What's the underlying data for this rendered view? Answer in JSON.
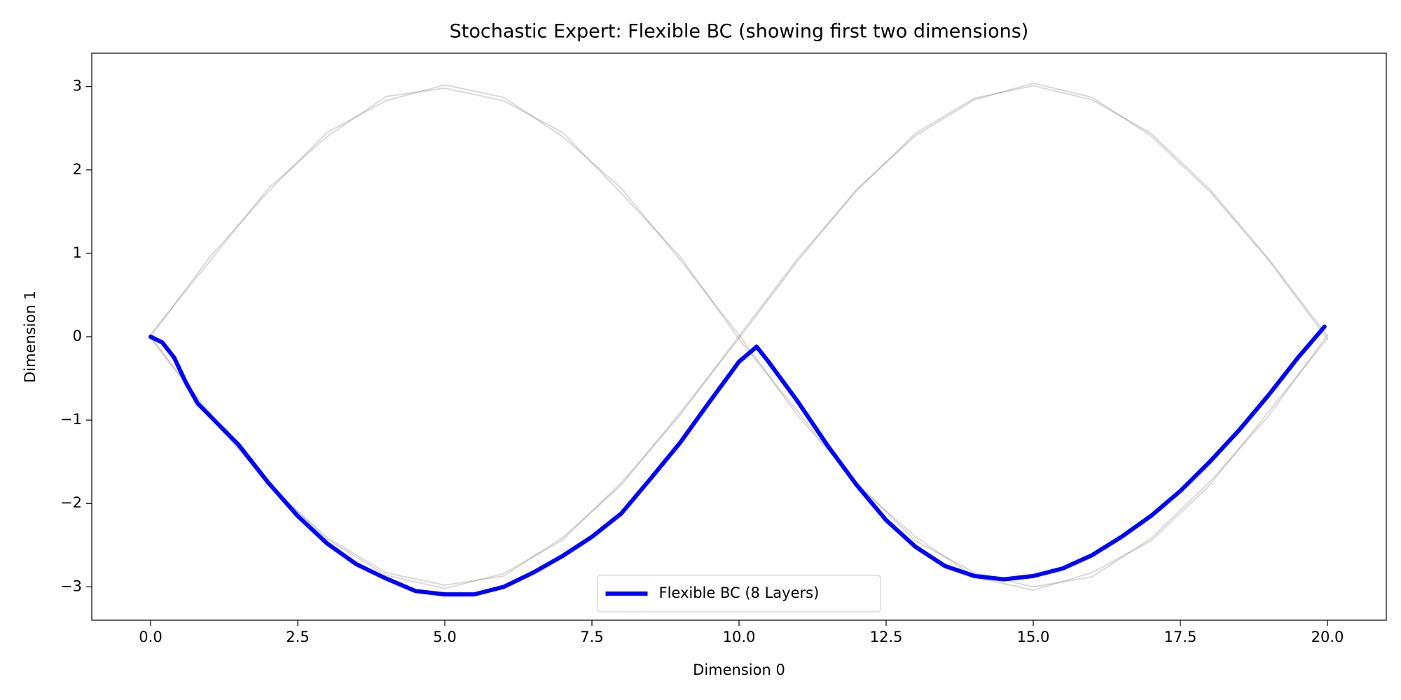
{
  "chart_data": {
    "type": "line",
    "title": "Stochastic Expert: Flexible BC (showing first two dimensions)",
    "x_label": "Dimension 0",
    "y_label": "Dimension 1",
    "xlim": [
      -1,
      21
    ],
    "ylim": [
      -3.4,
      3.4
    ],
    "xticks": [
      {
        "value": 0,
        "label": "0.0"
      },
      2.5,
      {
        "value": 5,
        "label": "5.0"
      },
      7.5,
      {
        "value": 10,
        "label": "10.0"
      },
      12.5,
      {
        "value": 15,
        "label": "15.0"
      },
      17.5,
      {
        "value": 20,
        "label": "20.0"
      }
    ],
    "yticks": [
      {
        "value": -3,
        "label": "−3"
      },
      {
        "value": -2,
        "label": "−2"
      },
      {
        "value": -1,
        "label": "−1"
      },
      0,
      1,
      2,
      3
    ],
    "grid": false,
    "legend": "lower center",
    "series": [
      {
        "color": "#808080",
        "alpha": 0.3,
        "width": 2,
        "x": [
          0,
          1,
          2,
          3,
          4,
          5,
          6,
          7,
          8,
          9,
          10,
          11,
          12,
          13,
          14,
          15,
          16,
          17,
          18,
          19,
          20
        ],
        "values": [
          0,
          0.95,
          1.74,
          2.45,
          2.83,
          3.02,
          2.87,
          2.4,
          1.78,
          0.92,
          0.02,
          -0.95,
          -1.75,
          -2.45,
          -2.83,
          -3.0,
          -2.88,
          -2.42,
          -1.74,
          -0.95,
          0.02
        ]
      },
      {
        "color": "#808080",
        "alpha": 0.3,
        "width": 2,
        "x": [
          0,
          1,
          2,
          3,
          4,
          5,
          6,
          7,
          8,
          9,
          10,
          11,
          12,
          13,
          14,
          15,
          16,
          17,
          18,
          19,
          20
        ],
        "values": [
          0.03,
          0.9,
          1.78,
          2.4,
          2.88,
          2.98,
          2.83,
          2.45,
          1.72,
          0.96,
          -0.03,
          -0.9,
          -1.78,
          -2.4,
          -2.88,
          -3.04,
          -2.83,
          -2.45,
          -1.78,
          -0.9,
          -0.02
        ]
      },
      {
        "color": "#808080",
        "alpha": 0.3,
        "width": 2,
        "x": [
          0,
          1,
          2,
          3,
          4,
          5,
          6,
          7,
          8,
          9,
          10,
          11,
          12,
          13,
          14,
          15,
          16,
          17,
          18,
          19,
          20
        ],
        "values": [
          0,
          -0.95,
          -1.76,
          -2.43,
          -2.86,
          -3.02,
          -2.84,
          -2.44,
          -1.75,
          -0.94,
          0.01,
          0.94,
          1.75,
          2.44,
          2.86,
          3.01,
          2.84,
          2.44,
          1.77,
          0.93,
          0.01
        ]
      },
      {
        "color": "#808080",
        "alpha": 0.3,
        "width": 2,
        "x": [
          0,
          1,
          2,
          3,
          4,
          5,
          6,
          7,
          8,
          9,
          10,
          11,
          12,
          13,
          14,
          15,
          16,
          17,
          18,
          19,
          20
        ],
        "values": [
          -0.02,
          -0.91,
          -1.78,
          -2.41,
          -2.83,
          -2.98,
          -2.87,
          -2.41,
          -1.78,
          -0.91,
          -0.02,
          0.91,
          1.77,
          2.41,
          2.84,
          3.04,
          2.87,
          2.41,
          1.74,
          0.92,
          -0.03
        ]
      },
      {
        "name": "Flexible BC (8 Layers)",
        "color": "#0000ff",
        "alpha": 1,
        "width": 6,
        "x": [
          0,
          0.2,
          0.4,
          0.6,
          0.8,
          1.5,
          2,
          2.5,
          3,
          3.5,
          4,
          4.5,
          5,
          5.5,
          6,
          6.5,
          7,
          7.5,
          8,
          8.5,
          9,
          9.5,
          10,
          10.3,
          10.5,
          11,
          11.5,
          12,
          12.5,
          13,
          13.5,
          14,
          14.5,
          15,
          15.5,
          16,
          16.5,
          17,
          17.5,
          18,
          18.5,
          19,
          19.5,
          19.95
        ],
        "values": [
          0,
          -0.07,
          -0.25,
          -0.55,
          -0.8,
          -1.3,
          -1.75,
          -2.15,
          -2.48,
          -2.73,
          -2.9,
          -3.05,
          -3.09,
          -3.09,
          -3.0,
          -2.83,
          -2.63,
          -2.4,
          -2.12,
          -1.7,
          -1.27,
          -0.78,
          -0.3,
          -0.12,
          -0.3,
          -0.78,
          -1.3,
          -1.78,
          -2.2,
          -2.52,
          -2.75,
          -2.87,
          -2.91,
          -2.87,
          -2.78,
          -2.62,
          -2.4,
          -2.15,
          -1.85,
          -1.5,
          -1.12,
          -0.7,
          -0.25,
          0.12
        ]
      }
    ]
  }
}
